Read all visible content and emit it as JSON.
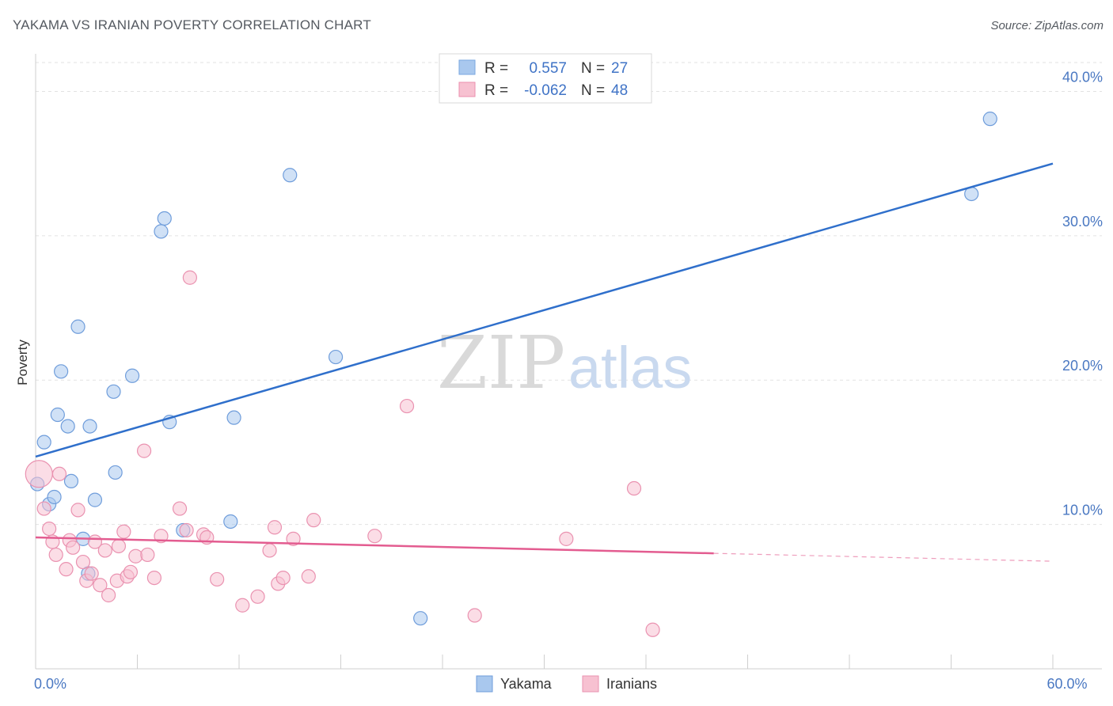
{
  "header": {
    "title": "YAKAMA VS IRANIAN POVERTY CORRELATION CHART",
    "source": "Source: ZipAtlas.com"
  },
  "legend": {
    "rows": [
      {
        "r_label": "R =",
        "r_value": "0.557",
        "n_label": "N =",
        "n_value": "27",
        "color": "#a9c8ee",
        "stroke": "#7aa7e0"
      },
      {
        "r_label": "R =",
        "r_value": "-0.062",
        "n_label": "N =",
        "n_value": "48",
        "color": "#f7c1d1",
        "stroke": "#eb8fae"
      }
    ]
  },
  "watermark": {
    "part1": "ZIP",
    "part2": "atlas"
  },
  "chart_data": {
    "type": "scatter",
    "title": "YAKAMA VS IRANIAN POVERTY CORRELATION CHART",
    "xlabel": "",
    "ylabel": "Poverty",
    "xlim": [
      0,
      60
    ],
    "ylim": [
      0,
      42
    ],
    "x_tick_labels": [
      {
        "value": 0,
        "label": "0.0%"
      },
      {
        "value": 60,
        "label": "60.0%"
      }
    ],
    "y_tick_labels": [
      {
        "value": 10,
        "label": "10.0%"
      },
      {
        "value": 20,
        "label": "20.0%"
      },
      {
        "value": 30,
        "label": "30.0%"
      },
      {
        "value": 40,
        "label": "40.0%"
      }
    ],
    "grid": true,
    "legend_position": "top-center",
    "series": [
      {
        "name": "Yakama",
        "color": "#a9c8ee",
        "stroke": "#6f9ddb",
        "line_color": "#2f6fcb",
        "trend": {
          "x1": 0,
          "y1": 14.7,
          "x2": 60,
          "y2": 35.0,
          "dashed_to": null
        },
        "points": [
          [
            0.1,
            12.8
          ],
          [
            0.5,
            15.7
          ],
          [
            0.8,
            11.4
          ],
          [
            1.1,
            11.9
          ],
          [
            1.3,
            17.6
          ],
          [
            1.5,
            20.6
          ],
          [
            1.9,
            16.8
          ],
          [
            2.1,
            13.0
          ],
          [
            2.5,
            23.7
          ],
          [
            2.8,
            9.0
          ],
          [
            3.1,
            6.6
          ],
          [
            3.2,
            16.8
          ],
          [
            3.5,
            11.7
          ],
          [
            4.6,
            19.2
          ],
          [
            4.7,
            13.6
          ],
          [
            5.7,
            20.3
          ],
          [
            7.4,
            30.3
          ],
          [
            7.6,
            31.2
          ],
          [
            7.9,
            17.1
          ],
          [
            8.7,
            9.6
          ],
          [
            11.5,
            10.2
          ],
          [
            11.7,
            17.4
          ],
          [
            15.0,
            34.2
          ],
          [
            17.7,
            21.6
          ],
          [
            22.7,
            3.5
          ],
          [
            55.2,
            32.9
          ],
          [
            56.3,
            38.1
          ]
        ]
      },
      {
        "name": "Iranians",
        "color": "#f7c1d1",
        "stroke": "#ea92b0",
        "line_color": "#e35c90",
        "trend": {
          "x1": 0,
          "y1": 9.1,
          "x2": 40,
          "y2": 8.0,
          "dashed_to": 60
        },
        "points": [
          [
            0.2,
            13.5
          ],
          [
            0.5,
            11.1
          ],
          [
            0.8,
            9.7
          ],
          [
            1.0,
            8.8
          ],
          [
            1.2,
            7.9
          ],
          [
            1.4,
            13.5
          ],
          [
            1.8,
            6.9
          ],
          [
            2.0,
            8.9
          ],
          [
            2.2,
            8.4
          ],
          [
            2.5,
            11.0
          ],
          [
            2.8,
            7.4
          ],
          [
            3.0,
            6.1
          ],
          [
            3.3,
            6.6
          ],
          [
            3.5,
            8.8
          ],
          [
            3.8,
            5.8
          ],
          [
            4.1,
            8.2
          ],
          [
            4.3,
            5.1
          ],
          [
            4.8,
            6.1
          ],
          [
            4.9,
            8.5
          ],
          [
            5.2,
            9.5
          ],
          [
            5.4,
            6.4
          ],
          [
            5.6,
            6.7
          ],
          [
            5.9,
            7.8
          ],
          [
            6.4,
            15.1
          ],
          [
            6.6,
            7.9
          ],
          [
            7.0,
            6.3
          ],
          [
            7.4,
            9.2
          ],
          [
            8.5,
            11.1
          ],
          [
            8.9,
            9.6
          ],
          [
            9.1,
            27.1
          ],
          [
            9.9,
            9.3
          ],
          [
            10.1,
            9.1
          ],
          [
            10.7,
            6.2
          ],
          [
            12.2,
            4.4
          ],
          [
            13.1,
            5.0
          ],
          [
            13.8,
            8.2
          ],
          [
            14.1,
            9.8
          ],
          [
            14.3,
            5.9
          ],
          [
            14.6,
            6.3
          ],
          [
            15.2,
            9.0
          ],
          [
            16.1,
            6.4
          ],
          [
            16.4,
            10.3
          ],
          [
            20.0,
            9.2
          ],
          [
            21.9,
            18.2
          ],
          [
            25.9,
            3.7
          ],
          [
            31.3,
            9.0
          ],
          [
            35.3,
            12.5
          ],
          [
            36.4,
            2.7
          ]
        ]
      }
    ]
  }
}
